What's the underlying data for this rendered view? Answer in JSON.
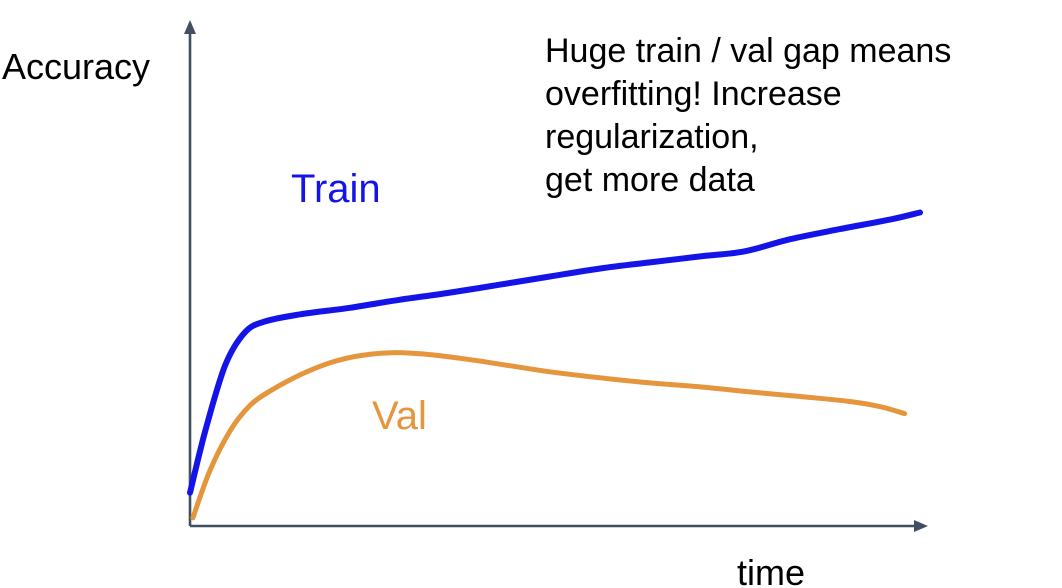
{
  "labels": {
    "y_axis": "Accuracy",
    "x_axis": "time",
    "train": "Train",
    "val": "Val"
  },
  "annotation": {
    "text": "Huge train / val gap means\noverfitting! Increase regularization,\nget more data"
  },
  "colors": {
    "train": "#1414e8",
    "val": "#e5953c",
    "axis": "#414f63",
    "text": "#000000",
    "background": "#ffffff"
  },
  "chart_data": {
    "type": "line",
    "title": "",
    "xlabel": "time",
    "ylabel": "Accuracy",
    "axes": {
      "ticks": false,
      "grid": false,
      "style": "arrow-axes",
      "x_range": [
        0,
        1
      ],
      "y_range": [
        0,
        1
      ]
    },
    "legend": {
      "position": "inline-curve-labels",
      "entries": [
        "Train",
        "Val"
      ]
    },
    "annotation": "Huge train / val gap means overfitting! Increase regularization, get more data",
    "series": [
      {
        "name": "Train",
        "color": "#1414e8",
        "stroke_width": 6,
        "points": [
          [
            0.0,
            0.066
          ],
          [
            0.021,
            0.189
          ],
          [
            0.048,
            0.318
          ],
          [
            0.075,
            0.384
          ],
          [
            0.103,
            0.406
          ],
          [
            0.151,
            0.42
          ],
          [
            0.219,
            0.433
          ],
          [
            0.288,
            0.449
          ],
          [
            0.356,
            0.463
          ],
          [
            0.425,
            0.479
          ],
          [
            0.493,
            0.495
          ],
          [
            0.562,
            0.511
          ],
          [
            0.63,
            0.523
          ],
          [
            0.699,
            0.535
          ],
          [
            0.76,
            0.545
          ],
          [
            0.822,
            0.569
          ],
          [
            0.89,
            0.589
          ],
          [
            0.959,
            0.608
          ],
          [
            1.0,
            0.622
          ]
        ]
      },
      {
        "name": "Val",
        "color": "#e5953c",
        "stroke_width": 5,
        "points": [
          [
            0.004,
            0.016
          ],
          [
            0.027,
            0.109
          ],
          [
            0.055,
            0.189
          ],
          [
            0.082,
            0.239
          ],
          [
            0.11,
            0.268
          ],
          [
            0.151,
            0.3
          ],
          [
            0.192,
            0.324
          ],
          [
            0.233,
            0.338
          ],
          [
            0.281,
            0.344
          ],
          [
            0.329,
            0.34
          ],
          [
            0.384,
            0.33
          ],
          [
            0.438,
            0.318
          ],
          [
            0.493,
            0.306
          ],
          [
            0.562,
            0.294
          ],
          [
            0.63,
            0.284
          ],
          [
            0.699,
            0.276
          ],
          [
            0.767,
            0.266
          ],
          [
            0.836,
            0.257
          ],
          [
            0.904,
            0.247
          ],
          [
            0.945,
            0.237
          ],
          [
            0.979,
            0.223
          ]
        ]
      }
    ]
  }
}
